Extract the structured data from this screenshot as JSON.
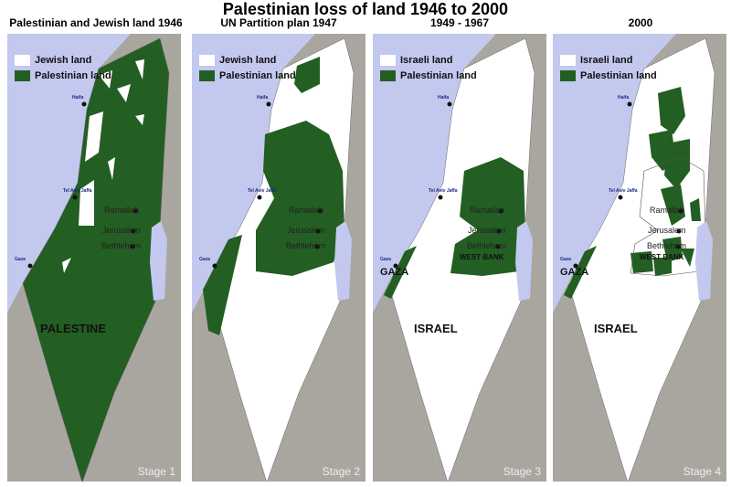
{
  "title": "Palestinian loss of land 1946 to 2000",
  "colors": {
    "palestinian": "#235e23",
    "jewish": "#ffffff",
    "sea": "#c3c8ef",
    "land": "#a9a6a0"
  },
  "panels": [
    {
      "heading": "Palestinian and Jewish land 1946",
      "legend": [
        "Jewish land",
        "Palestinian land"
      ],
      "region_label": "PALESTINE",
      "stage": "Stage 1",
      "cities": [
        "Haifa",
        "Tel Aviv Jaffa",
        "Ramallah",
        "Jerusalem",
        "Bethlehem",
        "Gaza"
      ]
    },
    {
      "heading": "UN Partition plan  1947",
      "legend": [
        "Jewish land",
        "Palestinian land"
      ],
      "region_label": "",
      "stage": "Stage 2",
      "cities": [
        "Haifa",
        "Tel Aviv Jaffa",
        "Ramallah",
        "Jerusalem",
        "Bethlehem",
        "Gaza"
      ]
    },
    {
      "heading": "1949 - 1967",
      "legend": [
        "Israeli land",
        "Palestinian land"
      ],
      "region_label": "ISRAEL",
      "stage": "Stage 3",
      "cities": [
        "Haifa",
        "Tel Aviv Jaffa",
        "Ramallah",
        "Jerusalem",
        "Bethlehem",
        "Gaza"
      ],
      "area_labels": [
        "GAZA",
        "WEST BANK"
      ]
    },
    {
      "heading": "2000",
      "legend": [
        "Israeli land",
        "Palestinian land"
      ],
      "region_label": "ISRAEL",
      "stage": "Stage 4",
      "cities": [
        "Haifa",
        "Tel Aviv Jaffa",
        "Ramallah",
        "Jerusalem",
        "Bethlehem",
        "Gaza"
      ],
      "area_labels": [
        "GAZA",
        "WEST BANK"
      ]
    }
  ]
}
